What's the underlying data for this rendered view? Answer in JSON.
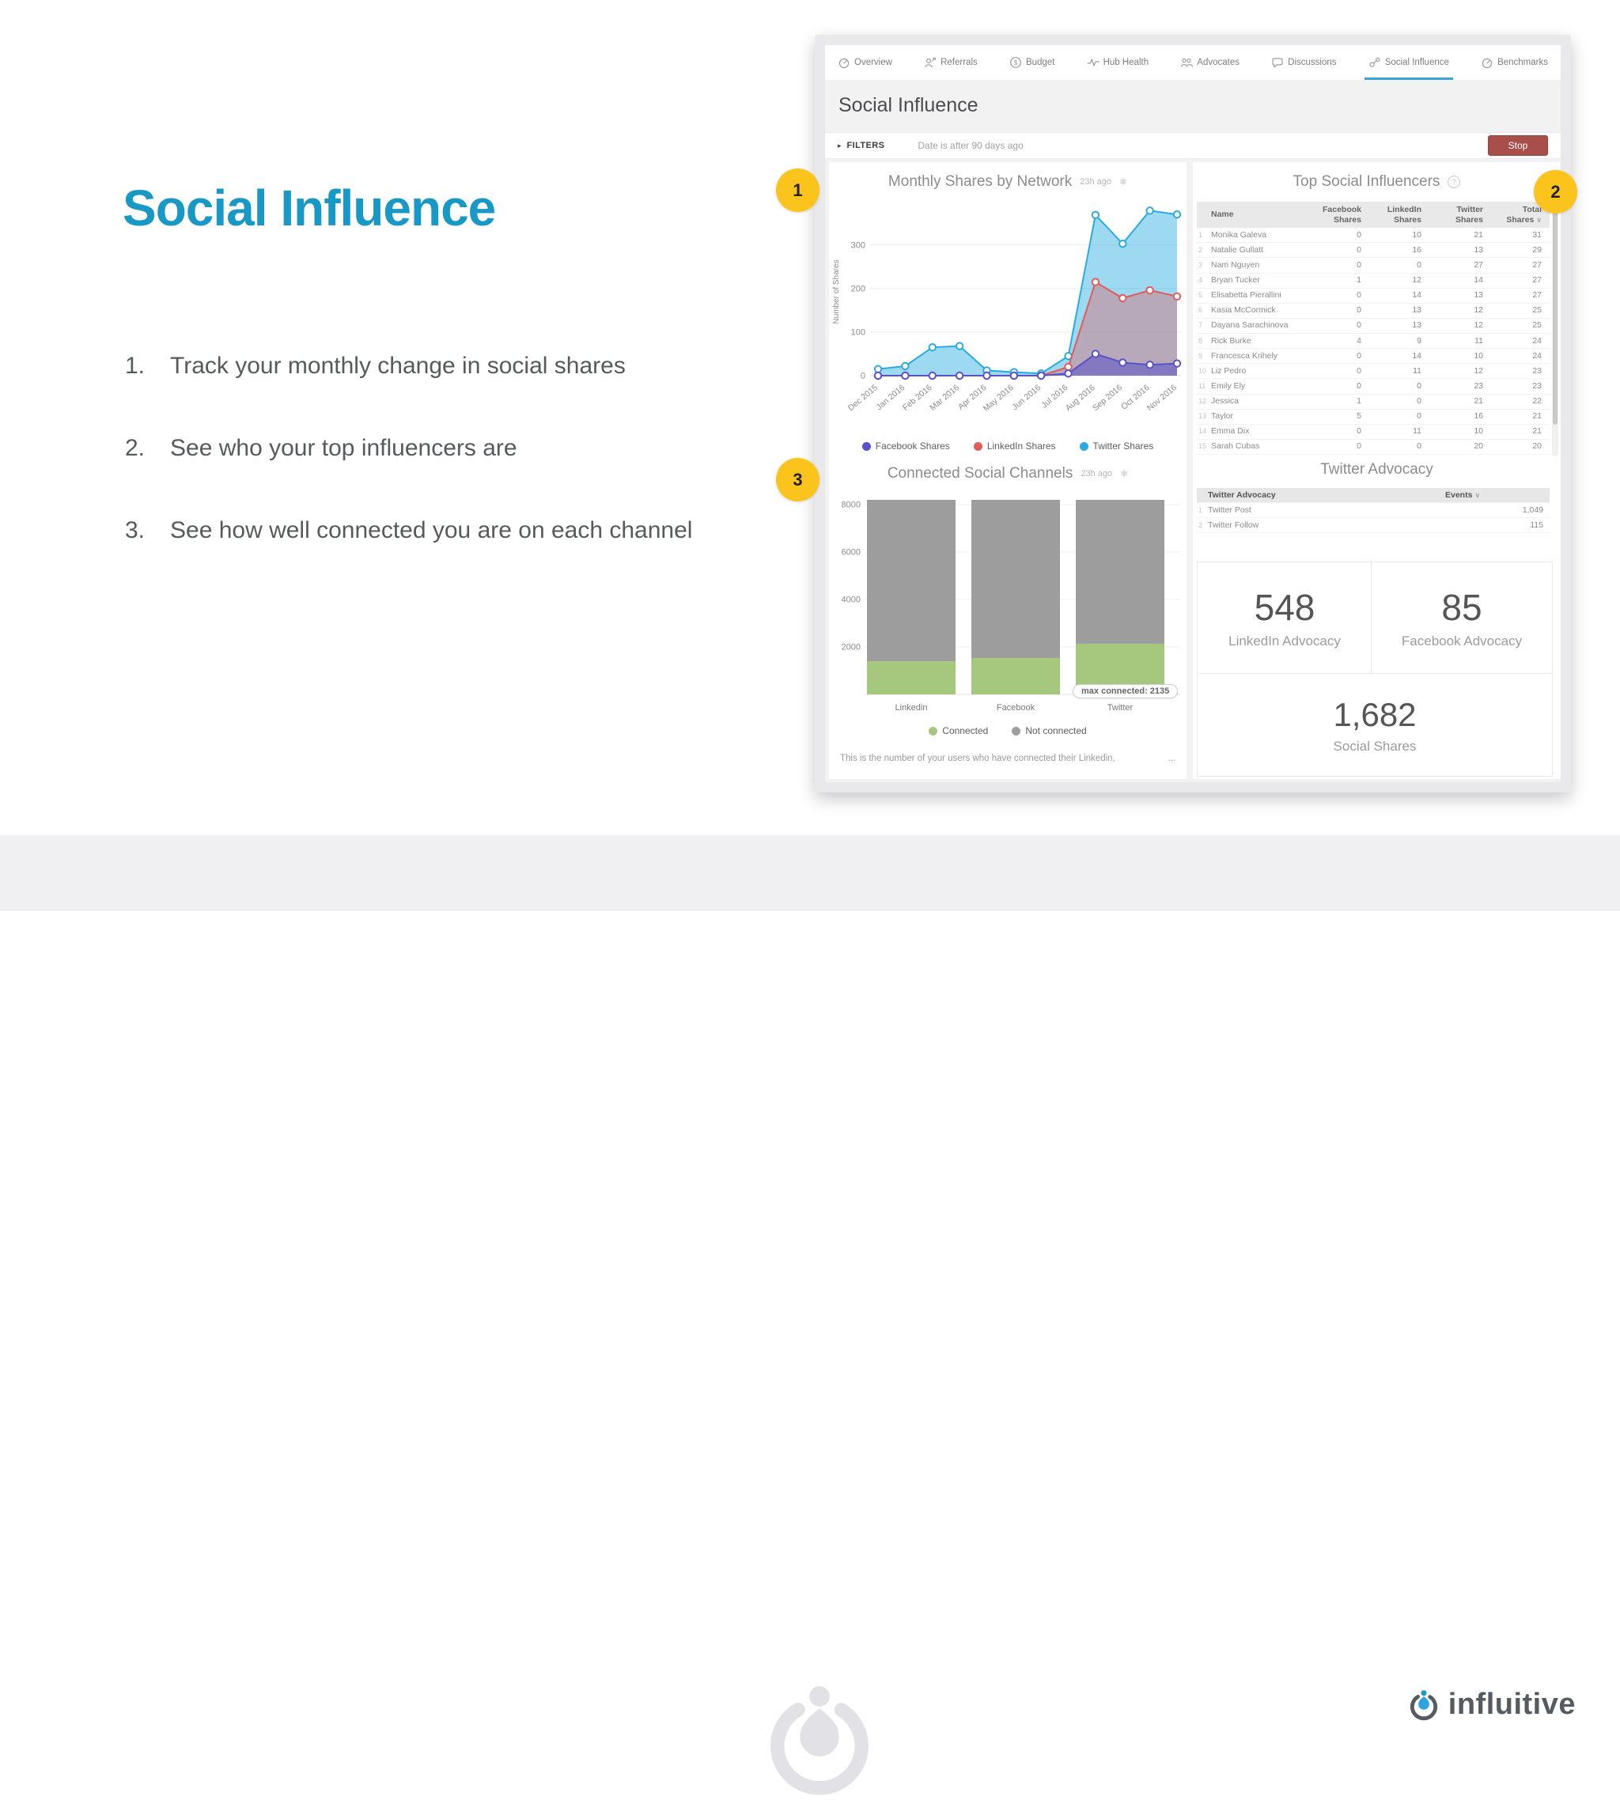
{
  "slide": {
    "title": "Social Influence",
    "bullets": [
      {
        "marker": "1.",
        "text": "Track your monthly change in social shares"
      },
      {
        "marker": "2.",
        "text": "See who your top influencers are"
      },
      {
        "marker": "3.",
        "text": "See how well connected you are on each channel"
      }
    ],
    "badges": [
      {
        "label": "1"
      },
      {
        "label": "2"
      },
      {
        "label": "3"
      }
    ]
  },
  "icons": {
    "caret": "▸",
    "spinner": "✱",
    "help": "?",
    "sort": "∨",
    "dollar": "$"
  },
  "dashboard": {
    "tabs": [
      {
        "label": "Overview",
        "icon": "gauge-icon",
        "active": false
      },
      {
        "label": "Referrals",
        "icon": "person-referral-icon",
        "active": false
      },
      {
        "label": "Budget",
        "icon": "dollar-circle-icon",
        "active": false
      },
      {
        "label": "Hub Health",
        "icon": "pulse-icon",
        "active": false
      },
      {
        "label": "Advocates",
        "icon": "people-group-icon",
        "active": false
      },
      {
        "label": "Discussions",
        "icon": "speech-bubble-icon",
        "active": false
      },
      {
        "label": "Social Influence",
        "icon": "share-nodes-icon",
        "active": true
      },
      {
        "label": "Benchmarks",
        "icon": "benchmark-gauge-icon",
        "active": false
      }
    ],
    "page_title": "Social Influence",
    "filters": {
      "label": "FILTERS",
      "value": "Date is after 90 days ago",
      "stop_label": "Stop"
    },
    "influencers": {
      "title": "Top Social Influencers",
      "headers": [
        "Name",
        "Facebook Shares",
        "LinkedIn Shares",
        "Twitter Shares",
        "Total Shares"
      ],
      "sorted_column": 4,
      "rows": [
        {
          "n": "1",
          "name": "Monika Galeva",
          "fb": "0",
          "li": "10",
          "tw": "21",
          "total": "31"
        },
        {
          "n": "2",
          "name": "Natalie Gullatt",
          "fb": "0",
          "li": "16",
          "tw": "13",
          "total": "29"
        },
        {
          "n": "3",
          "name": "Nam Nguyen",
          "fb": "0",
          "li": "0",
          "tw": "27",
          "total": "27"
        },
        {
          "n": "4",
          "name": "Bryan Tucker",
          "fb": "1",
          "li": "12",
          "tw": "14",
          "total": "27"
        },
        {
          "n": "5",
          "name": "Elisabetta Pierallini",
          "fb": "0",
          "li": "14",
          "tw": "13",
          "total": "27"
        },
        {
          "n": "6",
          "name": "Kasia McCormick",
          "fb": "0",
          "li": "13",
          "tw": "12",
          "total": "25"
        },
        {
          "n": "7",
          "name": "Dayana Sarachinova",
          "fb": "0",
          "li": "13",
          "tw": "12",
          "total": "25"
        },
        {
          "n": "8",
          "name": "Rick Burke",
          "fb": "4",
          "li": "9",
          "tw": "11",
          "total": "24"
        },
        {
          "n": "9",
          "name": "Francesca Krihely",
          "fb": "0",
          "li": "14",
          "tw": "10",
          "total": "24"
        },
        {
          "n": "10",
          "name": "Liz Pedro",
          "fb": "0",
          "li": "11",
          "tw": "12",
          "total": "23"
        },
        {
          "n": "11",
          "name": "Emily Ely",
          "fb": "0",
          "li": "0",
          "tw": "23",
          "total": "23"
        },
        {
          "n": "12",
          "name": "Jessica",
          "fb": "1",
          "li": "0",
          "tw": "21",
          "total": "22"
        },
        {
          "n": "13",
          "name": "Taylor",
          "fb": "5",
          "li": "0",
          "tw": "16",
          "total": "21"
        },
        {
          "n": "14",
          "name": "Emma Dix",
          "fb": "0",
          "li": "11",
          "tw": "10",
          "total": "21"
        },
        {
          "n": "15",
          "name": "Sarah Cubas",
          "fb": "0",
          "li": "0",
          "tw": "20",
          "total": "20"
        }
      ]
    },
    "advocacy": {
      "title": "Twitter Advocacy",
      "headers": [
        "Twitter Advocacy",
        "Events"
      ],
      "rows": [
        {
          "n": "1",
          "label": "Twitter Post",
          "events": "1,049"
        },
        {
          "n": "2",
          "label": "Twitter Follow",
          "events": "115"
        }
      ]
    },
    "stats": [
      {
        "value": "548",
        "label": "LinkedIn Advocacy"
      },
      {
        "value": "85",
        "label": "Facebook Advocacy"
      },
      {
        "value": "1,682",
        "label": "Social Shares"
      }
    ]
  },
  "chart_data": [
    {
      "type": "line",
      "title": "Monthly Shares by Network",
      "updated": "23h ago",
      "ylabel": "Number of Shares",
      "x": [
        "Dec 2015",
        "Jan 2016",
        "Feb 2016",
        "Mar 2016",
        "Apr 2016",
        "May 2016",
        "Jun 2016",
        "Jul 2016",
        "Aug 2016",
        "Sep 2016",
        "Oct 2016",
        "Nov 2016"
      ],
      "yticks": [
        0,
        100,
        200,
        300
      ],
      "ylim": [
        0,
        385
      ],
      "grid": true,
      "legend_position": "bottom",
      "series": [
        {
          "name": "Facebook Shares",
          "color": "#5B51C8",
          "values": [
            0,
            0,
            0,
            0,
            0,
            0,
            0,
            5,
            50,
            30,
            25,
            28
          ]
        },
        {
          "name": "LinkedIn Shares",
          "color": "#E05C5C",
          "values": [
            0,
            0,
            0,
            0,
            0,
            0,
            0,
            20,
            215,
            178,
            196,
            182
          ]
        },
        {
          "name": "Twitter Shares",
          "color": "#29ABE2",
          "values": [
            15,
            22,
            65,
            68,
            12,
            8,
            5,
            45,
            369,
            303,
            379,
            370
          ]
        }
      ]
    },
    {
      "type": "bar",
      "title": "Connected Social Channels",
      "updated": "23h ago",
      "categories": [
        "Linkedin",
        "Facebook",
        "Twitter"
      ],
      "yticks": [
        2000,
        4000,
        6000,
        8000
      ],
      "ylim": [
        0,
        8300
      ],
      "stacked": true,
      "legend_position": "bottom",
      "series": [
        {
          "name": "Connected",
          "color": "#A5C87E",
          "values": [
            1400,
            1530,
            2135
          ]
        },
        {
          "name": "Not connected",
          "color": "#9D9D9D",
          "values": [
            6800,
            6670,
            6065
          ]
        }
      ],
      "tooltip": "max connected: 2135",
      "caption": "This is the number of your users who have connected their Linkedin,",
      "caption_more": "..."
    }
  ],
  "footer": {
    "brand": "influitive"
  },
  "colors": {
    "accent_teal": "#1798C5",
    "badge_yellow": "#FBC41C",
    "stop_red": "#A94F4B",
    "tab_underline": "#36A3D9",
    "facebook": "#5B51C8",
    "linkedin": "#E05C5C",
    "twitter": "#29ABE2",
    "connected_green": "#A5C87E",
    "not_connected_gray": "#9D9D9D",
    "brand_blue": "#2BA5DB"
  }
}
